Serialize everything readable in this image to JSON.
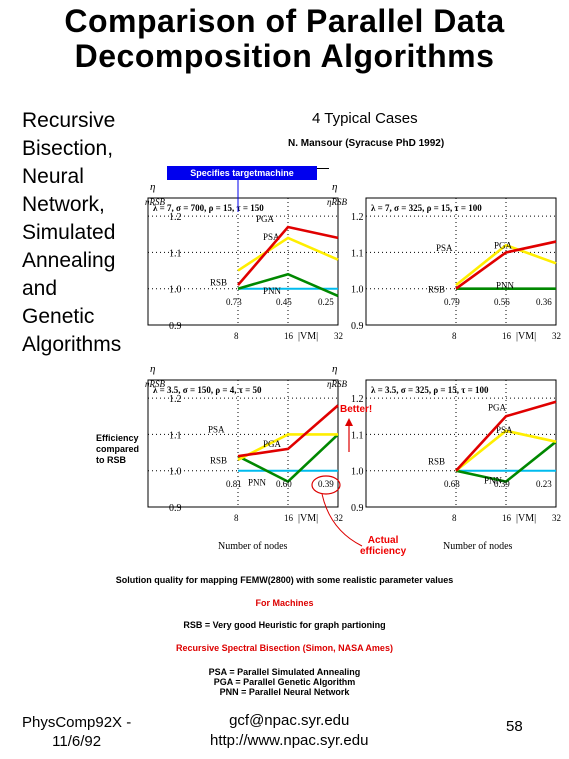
{
  "title": {
    "line1": "Comparison of Parallel Data",
    "line2": "Decomposition Algorithms"
  },
  "left_list": [
    "Recursive",
    "Bisection,",
    "Neural",
    "Network,",
    "Simulated",
    "Annealing",
    "and",
    "Genetic",
    "Algorithms"
  ],
  "cases_label": "4 Typical Cases",
  "author": "N. Mansour (Syracuse PhD 1992)",
  "specifies_label": "Specifies targetmachine",
  "eta_label": "η",
  "eta_rsb_label": "ηRSB",
  "efficiency_note": [
    "Efficiency",
    "compared",
    "to RSB"
  ],
  "better_label": "Better!",
  "actual_label": [
    "Actual",
    "efficiency"
  ],
  "nodes_label": "Number of nodes",
  "vm_label": "|VM|",
  "colors": {
    "PGA": "#e00000",
    "PSA": "#ffee00",
    "PNN": "#008800",
    "RSB": "#00bbee",
    "spec_box": "#0000ee"
  },
  "chart_data": [
    {
      "type": "line",
      "params": "λ = 7, σ = 700, ρ = 15, τ = 150",
      "x": [
        8,
        16,
        32
      ],
      "ylim": [
        0.9,
        1.25
      ],
      "y_ticks": [
        "1.2",
        "1.1",
        "1.0",
        "0.9"
      ],
      "x_ticks": [
        "8",
        "16",
        "32"
      ],
      "series": [
        {
          "name": "PGA",
          "values": [
            1.01,
            1.17,
            1.14
          ]
        },
        {
          "name": "PSA",
          "values": [
            1.05,
            1.14,
            1.08
          ]
        },
        {
          "name": "PNN",
          "values": [
            1.0,
            1.04,
            0.98
          ]
        },
        {
          "name": "RSB",
          "values": [
            1.0,
            1.0,
            1.0
          ]
        }
      ],
      "efficiency_labels": [
        "0.73",
        "0.45",
        "0.25"
      ]
    },
    {
      "type": "line",
      "params": "λ = 7, σ = 325, ρ = 15, τ = 100",
      "x": [
        8,
        16,
        32
      ],
      "ylim": [
        0.9,
        1.25
      ],
      "y_ticks": [
        "1.2",
        "1.1",
        "1.0",
        "0.9"
      ],
      "x_ticks": [
        "8",
        "16",
        "32"
      ],
      "series": [
        {
          "name": "PGA",
          "values": [
            1.0,
            1.1,
            1.13
          ]
        },
        {
          "name": "PSA",
          "values": [
            1.01,
            1.12,
            1.07
          ]
        },
        {
          "name": "PNN",
          "values": [
            1.0,
            1.0,
            1.0
          ]
        },
        {
          "name": "RSB",
          "values": [
            1.0,
            1.0,
            1.0
          ]
        }
      ],
      "efficiency_labels": [
        "0.79",
        "0.56",
        "0.36"
      ]
    },
    {
      "type": "line",
      "params": "λ = 3.5, σ = 150, ρ = 4, τ = 50",
      "x": [
        8,
        16,
        32
      ],
      "ylim": [
        0.9,
        1.25
      ],
      "y_ticks": [
        "1.2",
        "1.1",
        "1.0",
        "0.9"
      ],
      "x_ticks": [
        "8",
        "16",
        "32"
      ],
      "series": [
        {
          "name": "PGA",
          "values": [
            1.04,
            1.06,
            1.18
          ]
        },
        {
          "name": "PSA",
          "values": [
            1.03,
            1.1,
            1.1
          ]
        },
        {
          "name": "PNN",
          "values": [
            1.04,
            0.97,
            1.1
          ]
        },
        {
          "name": "RSB",
          "values": [
            1.0,
            1.0,
            1.0
          ]
        }
      ],
      "efficiency_labels": [
        "0.81",
        "0.60",
        "0.39"
      ]
    },
    {
      "type": "line",
      "params": "λ = 3.5, σ = 325, ρ = 15, τ = 100",
      "x": [
        8,
        16,
        32
      ],
      "ylim": [
        0.9,
        1.25
      ],
      "y_ticks": [
        "1.2",
        "1.1",
        "1.0",
        "0.9"
      ],
      "x_ticks": [
        "8",
        "16",
        "32"
      ],
      "series": [
        {
          "name": "PGA",
          "values": [
            1.0,
            1.15,
            1.19
          ]
        },
        {
          "name": "PSA",
          "values": [
            1.0,
            1.11,
            1.08
          ]
        },
        {
          "name": "PNN",
          "values": [
            1.0,
            0.97,
            1.08
          ]
        },
        {
          "name": "RSB",
          "values": [
            1.0,
            1.0,
            1.0
          ]
        }
      ],
      "efficiency_labels": [
        "0.68",
        "0.39",
        "0.23"
      ]
    }
  ],
  "footnotes": {
    "solution": "Solution quality for mapping FEMW(2800) with some realistic parameter values",
    "machines": "For Machines",
    "rsb": "RSB = Very good Heuristic for graph partioning",
    "rsb_full": "Recursive Spectral Bisection (Simon, NASA Ames)",
    "psa": "PSA = Parallel Simulated Annealing",
    "pga": "PGA = Parallel Genetic Algorithm",
    "pnn": "PNN = Parallel Neural Network"
  },
  "footer": {
    "course": "PhysComp92X -",
    "date": "11/6/92",
    "email": "gcf@npac.syr.edu",
    "url": "http://www.npac.syr.edu",
    "page": "58"
  }
}
